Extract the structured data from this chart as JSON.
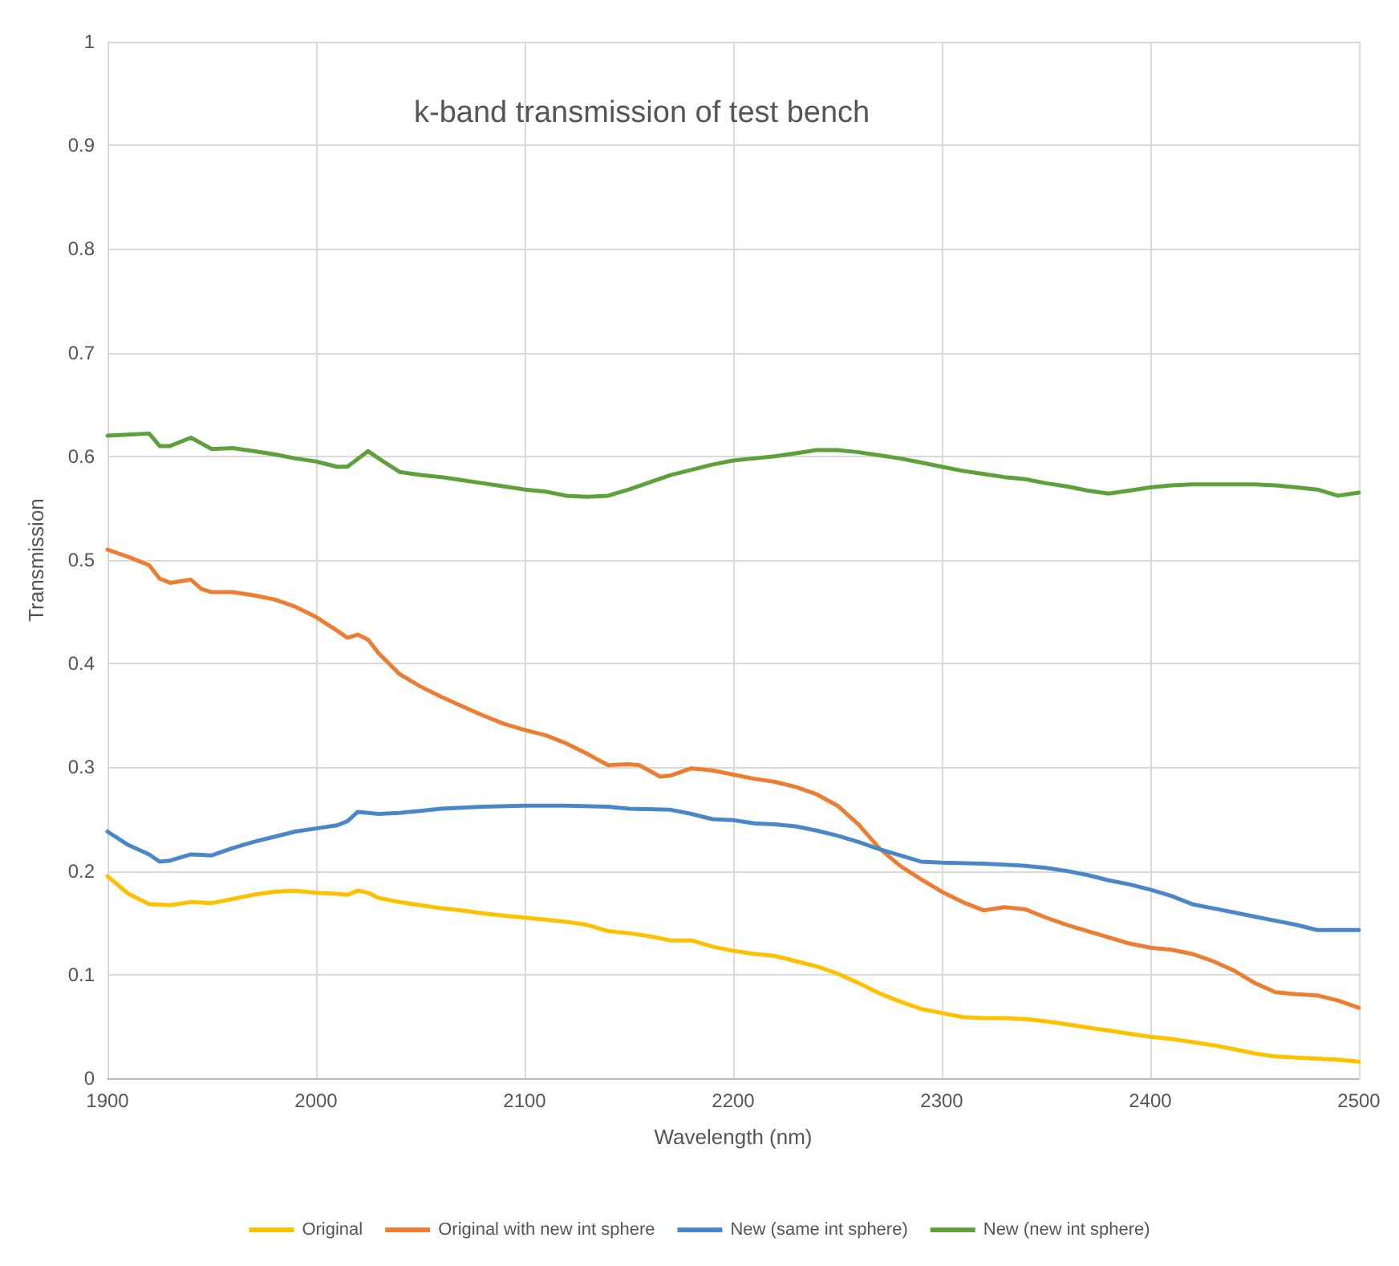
{
  "chart_data": {
    "type": "line",
    "title": "k-band transmission of test bench",
    "xlabel": "Wavelength (nm)",
    "ylabel": "Transmission",
    "xlim": [
      1900,
      2500
    ],
    "xticks": [
      1900,
      2000,
      2100,
      2200,
      2300,
      2400,
      2500
    ],
    "ylim": [
      0,
      1
    ],
    "yticks": [
      0,
      0.1,
      0.2,
      0.3,
      0.4,
      0.5,
      0.6,
      0.7,
      0.8,
      0.9,
      1
    ],
    "grid": true,
    "legend": "bottom",
    "marker": "none",
    "line_style": "solid",
    "series": [
      {
        "name": "Original",
        "color": "#ffc000",
        "x": [
          1900,
          1910,
          1920,
          1930,
          1940,
          1950,
          1960,
          1970,
          1980,
          1990,
          2000,
          2010,
          2015,
          2020,
          2025,
          2030,
          2040,
          2050,
          2060,
          2070,
          2080,
          2090,
          2100,
          2110,
          2120,
          2130,
          2140,
          2150,
          2160,
          2170,
          2180,
          2190,
          2200,
          2210,
          2220,
          2230,
          2240,
          2250,
          2260,
          2270,
          2280,
          2290,
          2300,
          2310,
          2320,
          2330,
          2340,
          2350,
          2360,
          2370,
          2380,
          2390,
          2400,
          2410,
          2420,
          2430,
          2440,
          2450,
          2460,
          2470,
          2480,
          2490,
          2500
        ],
        "values": [
          0.195,
          0.178,
          0.168,
          0.167,
          0.17,
          0.169,
          0.173,
          0.177,
          0.18,
          0.181,
          0.179,
          0.178,
          0.177,
          0.181,
          0.179,
          0.174,
          0.17,
          0.167,
          0.164,
          0.162,
          0.159,
          0.157,
          0.155,
          0.153,
          0.151,
          0.148,
          0.142,
          0.14,
          0.137,
          0.133,
          0.133,
          0.127,
          0.123,
          0.12,
          0.118,
          0.113,
          0.108,
          0.101,
          0.092,
          0.082,
          0.074,
          0.067,
          0.063,
          0.059,
          0.058,
          0.058,
          0.057,
          0.055,
          0.052,
          0.049,
          0.046,
          0.043,
          0.04,
          0.038,
          0.035,
          0.032,
          0.028,
          0.024,
          0.021,
          0.02,
          0.019,
          0.018,
          0.016
        ]
      },
      {
        "name": "Original with new int sphere",
        "color": "#ed7d31",
        "x": [
          1900,
          1910,
          1920,
          1925,
          1930,
          1940,
          1945,
          1950,
          1960,
          1970,
          1980,
          1990,
          2000,
          2010,
          2015,
          2020,
          2025,
          2030,
          2040,
          2050,
          2060,
          2070,
          2080,
          2090,
          2100,
          2110,
          2120,
          2130,
          2140,
          2150,
          2155,
          2165,
          2170,
          2180,
          2190,
          2200,
          2210,
          2220,
          2230,
          2240,
          2250,
          2260,
          2270,
          2280,
          2290,
          2300,
          2310,
          2320,
          2330,
          2340,
          2350,
          2360,
          2370,
          2380,
          2390,
          2400,
          2410,
          2420,
          2430,
          2440,
          2450,
          2460,
          2470,
          2480,
          2490,
          2500
        ],
        "values": [
          0.51,
          0.503,
          0.495,
          0.482,
          0.478,
          0.481,
          0.472,
          0.469,
          0.469,
          0.466,
          0.462,
          0.455,
          0.445,
          0.432,
          0.425,
          0.428,
          0.423,
          0.41,
          0.39,
          0.378,
          0.368,
          0.359,
          0.35,
          0.342,
          0.336,
          0.331,
          0.323,
          0.313,
          0.302,
          0.303,
          0.302,
          0.291,
          0.292,
          0.299,
          0.297,
          0.293,
          0.289,
          0.286,
          0.281,
          0.274,
          0.263,
          0.245,
          0.222,
          0.205,
          0.192,
          0.18,
          0.17,
          0.162,
          0.165,
          0.163,
          0.155,
          0.148,
          0.142,
          0.136,
          0.13,
          0.126,
          0.124,
          0.12,
          0.113,
          0.104,
          0.092,
          0.083,
          0.081,
          0.08,
          0.075,
          0.068
        ]
      },
      {
        "name": "New (same int sphere)",
        "color": "#4a87c8",
        "x": [
          1900,
          1910,
          1920,
          1925,
          1930,
          1940,
          1950,
          1960,
          1970,
          1980,
          1990,
          2000,
          2010,
          2015,
          2020,
          2030,
          2040,
          2050,
          2060,
          2070,
          2080,
          2100,
          2120,
          2140,
          2150,
          2170,
          2180,
          2190,
          2200,
          2210,
          2220,
          2230,
          2240,
          2250,
          2260,
          2270,
          2280,
          2290,
          2300,
          2320,
          2340,
          2350,
          2360,
          2370,
          2380,
          2390,
          2400,
          2410,
          2420,
          2430,
          2440,
          2450,
          2460,
          2470,
          2480,
          2490,
          2500
        ],
        "values": [
          0.238,
          0.225,
          0.216,
          0.209,
          0.21,
          0.216,
          0.215,
          0.222,
          0.228,
          0.233,
          0.238,
          0.241,
          0.244,
          0.248,
          0.257,
          0.255,
          0.256,
          0.258,
          0.26,
          0.261,
          0.262,
          0.263,
          0.263,
          0.262,
          0.26,
          0.259,
          0.255,
          0.25,
          0.249,
          0.246,
          0.245,
          0.243,
          0.239,
          0.234,
          0.228,
          0.221,
          0.215,
          0.209,
          0.208,
          0.207,
          0.205,
          0.203,
          0.2,
          0.196,
          0.191,
          0.187,
          0.182,
          0.176,
          0.168,
          0.164,
          0.16,
          0.156,
          0.152,
          0.148,
          0.143,
          0.143,
          0.143
        ]
      },
      {
        "name": "New (new int sphere)",
        "color": "#5ea03a",
        "x": [
          1900,
          1910,
          1920,
          1925,
          1930,
          1940,
          1950,
          1960,
          1970,
          1980,
          1990,
          2000,
          2010,
          2015,
          2025,
          2030,
          2040,
          2050,
          2060,
          2070,
          2080,
          2090,
          2100,
          2110,
          2120,
          2130,
          2140,
          2150,
          2160,
          2170,
          2180,
          2190,
          2200,
          2210,
          2220,
          2230,
          2240,
          2250,
          2260,
          2270,
          2280,
          2290,
          2300,
          2310,
          2320,
          2330,
          2340,
          2350,
          2360,
          2370,
          2380,
          2390,
          2400,
          2410,
          2420,
          2430,
          2440,
          2450,
          2460,
          2470,
          2480,
          2490,
          2500
        ],
        "values": [
          0.62,
          0.621,
          0.622,
          0.61,
          0.61,
          0.618,
          0.607,
          0.608,
          0.605,
          0.602,
          0.598,
          0.595,
          0.59,
          0.59,
          0.605,
          0.598,
          0.585,
          0.582,
          0.58,
          0.577,
          0.574,
          0.571,
          0.568,
          0.566,
          0.562,
          0.561,
          0.562,
          0.568,
          0.575,
          0.582,
          0.587,
          0.592,
          0.596,
          0.598,
          0.6,
          0.603,
          0.606,
          0.606,
          0.604,
          0.601,
          0.598,
          0.594,
          0.59,
          0.586,
          0.583,
          0.58,
          0.578,
          0.574,
          0.571,
          0.567,
          0.564,
          0.567,
          0.57,
          0.572,
          0.573,
          0.573,
          0.573,
          0.573,
          0.572,
          0.57,
          0.568,
          0.562,
          0.565
        ]
      }
    ]
  }
}
